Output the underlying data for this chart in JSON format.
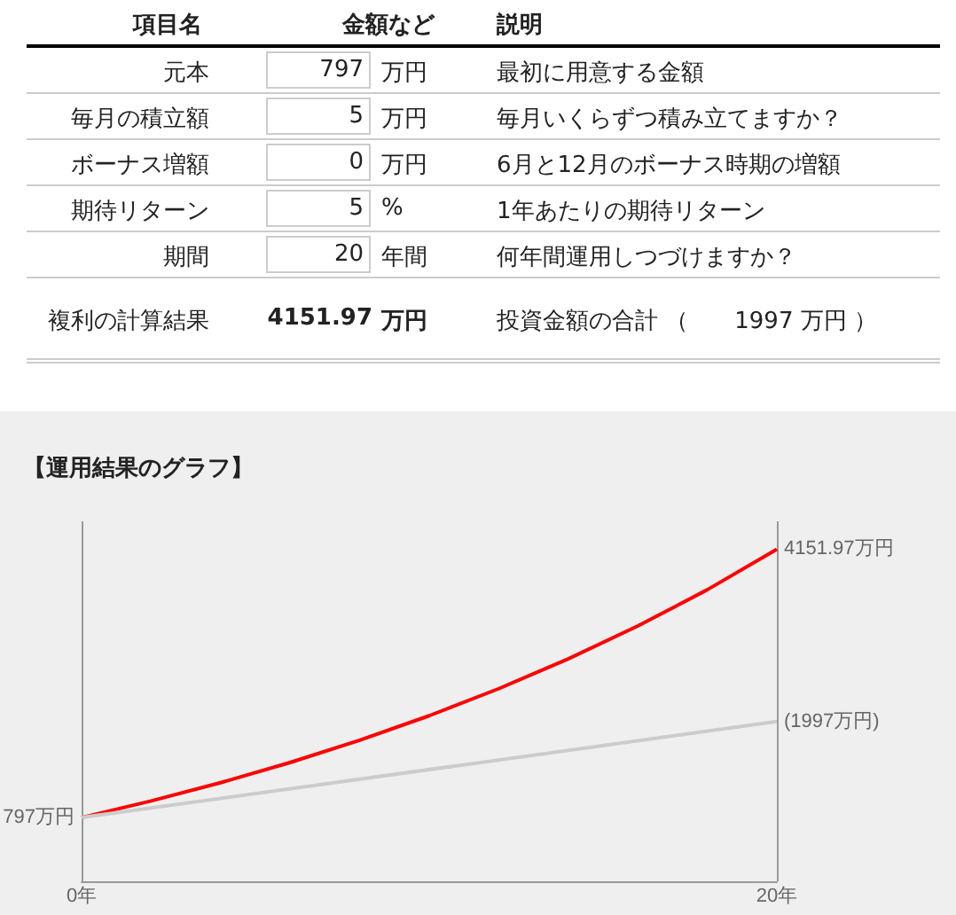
{
  "chart_data": [
    {
      "type": "other",
      "categories": [
        "項目名",
        "金額など",
        "説明"
      ],
      "annotations": [
        "元本",
        "797",
        "万円",
        "最初に用意する金額",
        "毎月の積立額",
        "5",
        "万円",
        "毎月いくらずつ積み立てますか？",
        "ボーナス増額",
        "0",
        "万円",
        "6月と12月のボーナス時期の増額",
        "期待リターン",
        "5",
        "%",
        "1年あたりの期待リターン",
        "期間",
        "20",
        "年間",
        "何年間運用しつづけますか？",
        "複利の計算結果",
        "4151.97",
        "万円",
        "投資金額の合計 （　　1997 万円 ）"
      ]
    },
    {
      "type": "line",
      "title": "【運用結果のグラフ】",
      "x": [
        0,
        2,
        4,
        6,
        8,
        10,
        12,
        14,
        16,
        18,
        20
      ],
      "series": [
        {
          "color": "#ff0000",
          "values": [
            797,
            1004,
            1233,
            1485,
            1764,
            2070,
            2408,
            2781,
            3192,
            3645,
            4151.97
          ],
          "value_labels": [
            "797万円",
            null,
            null,
            null,
            null,
            null,
            null,
            null,
            null,
            null,
            "4151.97万円"
          ]
        },
        {
          "color": "#cccccc",
          "x": [
            0,
            20
          ],
          "values": [
            797,
            1997
          ],
          "value_labels": [
            null,
            "(1997万円)"
          ]
        }
      ],
      "xlim": [
        0,
        20
      ],
      "xticks": [
        {
          "value": 0,
          "label": "0年"
        },
        {
          "value": 20,
          "label": "20年"
        }
      ],
      "ylim": [
        0,
        4500
      ],
      "grid": "x",
      "marker": "none",
      "line_style": "solid"
    }
  ]
}
